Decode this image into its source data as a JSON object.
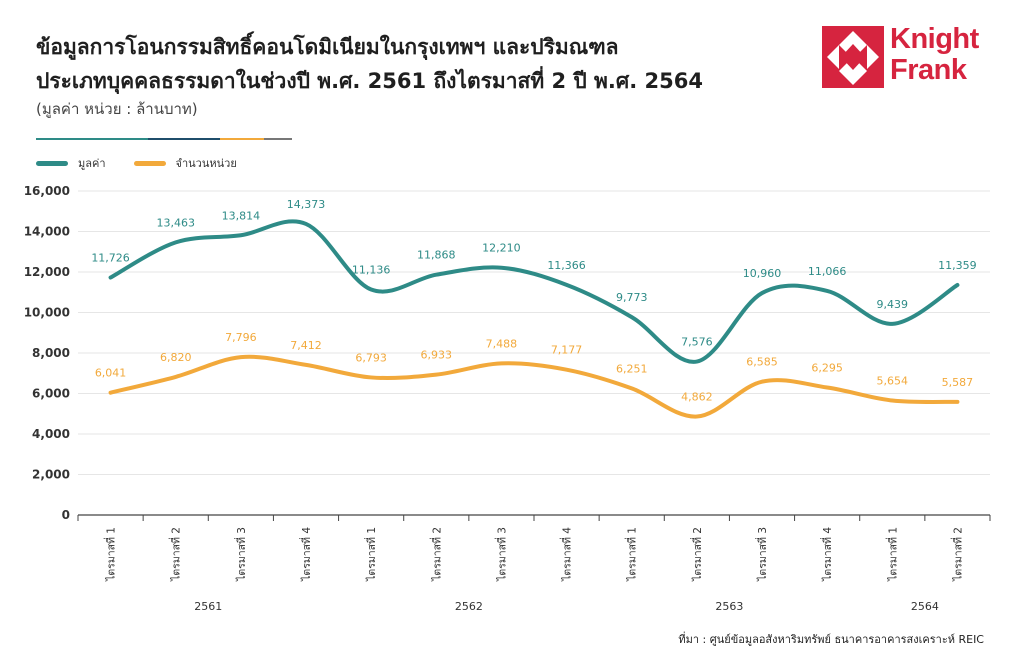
{
  "title_line1": "ข้อมูลการโอนกรรมสิทธิ์คอนโดมิเนียมในกรุงเทพฯ และปริมณฑล",
  "title_line2": "ประเภทบุคคลธรรมดาในช่วงปี พ.ศ. 2561 ถึงไตรมาสที่ 2 ปี พ.ศ. 2564",
  "subtitle": "(มูลค่า หน่วย : ล้านบาท)",
  "logo": {
    "line1": "Knight",
    "line2": "Frank",
    "color": "#d6243f"
  },
  "source": "ที่มา : ศูนย์ข้อมูลอสังหาริมทรัพย์ ธนาคารอาคารสงเคราะห์ REIC",
  "colors": {
    "value": "#2e8b87",
    "units": "#f2a93b",
    "axis": "#444444",
    "grid": "#e6e6e6"
  },
  "chart_data": {
    "type": "line",
    "categories": [
      "ไตรมาสที่ 1",
      "ไตรมาสที่ 2",
      "ไตรมาสที่ 3",
      "ไตรมาสที่ 4",
      "ไตรมาสที่ 1",
      "ไตรมาสที่ 2",
      "ไตรมาสที่ 3",
      "ไตรมาสที่ 4",
      "ไตรมาสที่ 1",
      "ไตรมาสที่ 2",
      "ไตรมาสที่ 3",
      "ไตรมาสที่ 4",
      "ไตรมาสที่ 1",
      "ไตรมาสที่ 2"
    ],
    "years": [
      {
        "label": "2561",
        "quarters": 4
      },
      {
        "label": "2562",
        "quarters": 4
      },
      {
        "label": "2563",
        "quarters": 4
      },
      {
        "label": "2564",
        "quarters": 2
      }
    ],
    "series": [
      {
        "name": "มูลค่า",
        "color": "#2e8b87",
        "values": [
          11726,
          13463,
          13814,
          14373,
          11136,
          11868,
          12210,
          11366,
          9773,
          7576,
          10960,
          11066,
          9439,
          11359
        ],
        "labels": [
          "11,726",
          "13,463",
          "13,814",
          "14,373",
          "11,136",
          "11,868",
          "12,210",
          "11,366",
          "9,773",
          "7,576",
          "10,960",
          "11,066",
          "9,439",
          "11,359"
        ]
      },
      {
        "name": "จำนวนหน่วย",
        "color": "#f2a93b",
        "values": [
          6041,
          6820,
          7796,
          7412,
          6793,
          6933,
          7488,
          7177,
          6251,
          4862,
          6585,
          6295,
          5654,
          5587
        ],
        "labels": [
          "6,041",
          "6,820",
          "7,796",
          "7,412",
          "6,793",
          "6,933",
          "7,488",
          "7,177",
          "6,251",
          "4,862",
          "6,585",
          "6,295",
          "5,654",
          "5,587"
        ]
      }
    ],
    "yticks": [
      "0",
      "2,000",
      "4,000",
      "6,000",
      "8,000",
      "10,000",
      "12,000",
      "14,000",
      "16,000"
    ],
    "ylim": [
      0,
      16000
    ],
    "grid": true,
    "legend": "top-left"
  }
}
